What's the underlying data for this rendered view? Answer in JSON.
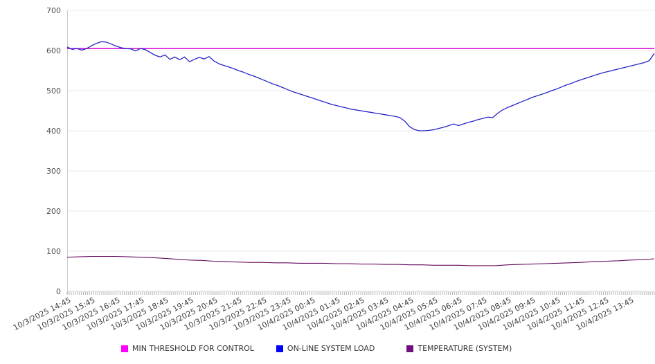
{
  "chart_data": {
    "type": "line",
    "title": "",
    "xlabel": "",
    "ylabel": "",
    "grid": "horizontal",
    "legend_position": "bottom",
    "x_axis": {
      "point_interval_minutes": 5,
      "label_interval": "1 hour",
      "categories": [
        "10/3/2025 14:45",
        "10/3/2025 15:45",
        "10/3/2025 16:45",
        "10/3/2025 17:45",
        "10/3/2025 18:45",
        "10/3/2025 19:45",
        "10/3/2025 20:45",
        "10/3/2025 21:45",
        "10/3/2025 22:45",
        "10/3/2025 23:45",
        "10/4/2025 00:45",
        "10/4/2025 01:45",
        "10/4/2025 02:45",
        "10/4/2025 03:45",
        "10/4/2025 04:45",
        "10/4/2025 05:45",
        "10/4/2025 06:45",
        "10/4/2025 07:45",
        "10/4/2025 08:45",
        "10/4/2025 09:45",
        "10/4/2025 10:45",
        "10/4/2025 11:45",
        "10/4/2025 12:45",
        "10/4/2025 13:45"
      ]
    },
    "y_axis": {
      "min": 0,
      "max": 700,
      "ticks": [
        0,
        100,
        200,
        300,
        400,
        500,
        600,
        700
      ]
    },
    "series": [
      {
        "name": "MIN THRESHOLD FOR CONTROL",
        "legend_color": "#ff00ff",
        "line_color": "#d300d3",
        "line_width": 1.5,
        "values": [
          605,
          605
        ]
      },
      {
        "name": "ON-LINE SYSTEM LOAD",
        "legend_color": "#0000ff",
        "line_color": "#2424c8",
        "line_width": 1.3,
        "values": [
          609,
          603,
          605,
          601,
          605,
          612,
          618,
          622,
          621,
          616,
          611,
          607,
          605,
          604,
          599,
          605,
          602,
          595,
          588,
          584,
          589,
          578,
          584,
          577,
          584,
          572,
          578,
          583,
          579,
          585,
          574,
          567,
          563,
          559,
          555,
          550,
          546,
          541,
          537,
          532,
          527,
          522,
          517,
          513,
          508,
          503,
          498,
          494,
          490,
          486,
          482,
          478,
          474,
          470,
          466,
          463,
          460,
          457,
          454,
          452,
          450,
          448,
          446,
          444,
          442,
          440,
          438,
          436,
          433,
          424,
          410,
          403,
          400,
          400,
          401,
          403,
          406,
          409,
          413,
          417,
          413,
          417,
          421,
          424,
          428,
          431,
          434,
          433,
          444,
          452,
          458,
          463,
          468,
          473,
          478,
          483,
          487,
          491,
          495,
          500,
          504,
          509,
          514,
          518,
          523,
          527,
          531,
          535,
          539,
          543,
          546,
          549,
          552,
          555,
          558,
          561,
          564,
          567,
          570,
          575,
          593
        ]
      },
      {
        "name": "TEMPERATURE (SYSTEM)",
        "legend_color": "#70107e",
        "line_color": "#65095c",
        "line_width": 1.1,
        "values": [
          85,
          86,
          87,
          87,
          87,
          86,
          85,
          84,
          82,
          80,
          78,
          77,
          75,
          74,
          73,
          72,
          72,
          71,
          71,
          70,
          70,
          70,
          69,
          69,
          68,
          68,
          67,
          67,
          66,
          66,
          65,
          65,
          65,
          64,
          64,
          64,
          66,
          67,
          68,
          69,
          70,
          71,
          72,
          74,
          75,
          76,
          78,
          79,
          81
        ]
      }
    ],
    "style": {
      "background": "#ffffff",
      "gridline_color": "#ebebeb",
      "axis_line_color": "#cccccc",
      "tick_color": "#b3b3b3",
      "label_color": "#4d4d4d"
    }
  }
}
